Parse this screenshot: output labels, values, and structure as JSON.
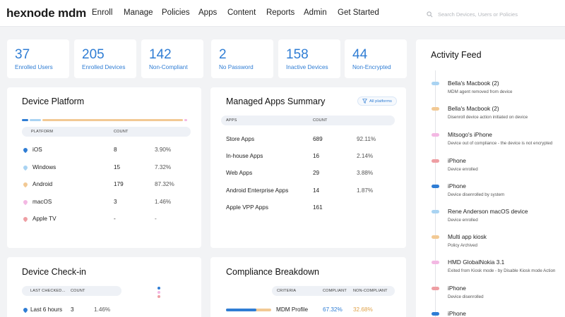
{
  "brand": "hexnode mdm",
  "nav": [
    "Enroll",
    "Manage",
    "Policies",
    "Apps",
    "Content",
    "Reports",
    "Admin",
    "Get Started"
  ],
  "search": {
    "placeholder": "Search Devices, Users or Policies"
  },
  "stats": [
    {
      "value": "37",
      "label": "Enrolled Users"
    },
    {
      "value": "205",
      "label": "Enrolled Devices"
    },
    {
      "value": "142",
      "label": "Non-Compliant"
    },
    {
      "value": "2",
      "label": "No Password"
    },
    {
      "value": "158",
      "label": "Inactive Devices"
    },
    {
      "value": "44",
      "label": "Non-Encrypted"
    }
  ],
  "colors": {
    "accent": "#2f7dd4",
    "ios": "#2f7dd4",
    "windows": "#a9d3f2",
    "android": "#f2c994",
    "macos": "#f3b8e3",
    "appletv": "#ee9ea3"
  },
  "device_platform": {
    "title": "Device Platform",
    "headers": {
      "platform": "PLATFORM",
      "count": "COUNT"
    },
    "rows": [
      {
        "name": "iOS",
        "count": "8",
        "pct": "3.90%",
        "share": 0.039,
        "color": "#2f7dd4"
      },
      {
        "name": "Windows",
        "count": "15",
        "pct": "7.32%",
        "share": 0.0732,
        "color": "#a9d3f2"
      },
      {
        "name": "Android",
        "count": "179",
        "pct": "87.32%",
        "share": 0.8732,
        "color": "#f2c994"
      },
      {
        "name": "macOS",
        "count": "3",
        "pct": "1.46%",
        "share": 0.0146,
        "color": "#f3b8e3"
      },
      {
        "name": "Apple TV",
        "count": "-",
        "pct": "-",
        "share": 0,
        "color": "#ee9ea3"
      }
    ]
  },
  "managed_apps": {
    "title": "Managed Apps Summary",
    "filter_label": "All platforms",
    "headers": {
      "apps": "APPS",
      "count": "COUNT"
    },
    "rows": [
      {
        "name": "Store Apps",
        "count": "689",
        "pct": "92.11%"
      },
      {
        "name": "In-house Apps",
        "count": "16",
        "pct": "2.14%"
      },
      {
        "name": "Web Apps",
        "count": "29",
        "pct": "3.88%"
      },
      {
        "name": "Android Enterprise Apps",
        "count": "14",
        "pct": "1.87%"
      },
      {
        "name": "Apple VPP Apps",
        "count": "161",
        "pct": ""
      }
    ]
  },
  "checkin": {
    "title": "Device Check-in",
    "headers": {
      "last": "LAST CHECKED...",
      "count": "COUNT"
    },
    "rows": [
      {
        "name": "Last 6 hours",
        "count": "3",
        "pct": "1.46%"
      }
    ]
  },
  "compliance": {
    "title": "Compliance Breakdown",
    "headers": {
      "criteria": "CRITERIA",
      "compliant": "COMPLIANT",
      "noncompliant": "NON-COMPLIANT"
    },
    "rows": [
      {
        "name": "MDM Profile",
        "compliant": "67.32%",
        "noncompliant": "32.68%",
        "compliant_share": 0.6732
      }
    ]
  },
  "activity": {
    "title": "Activity Feed",
    "items": [
      {
        "title": "Bella's Macbook (2)",
        "sub": "MDM agent removed from device",
        "color": "#a9d3f2"
      },
      {
        "title": "Bella's Macbook (2)",
        "sub": "Disenroll device action initiated on device",
        "color": "#f2c994"
      },
      {
        "title": "Mitsogo's iPhone",
        "sub": "Device out of compliance - the device is not encrypted",
        "color": "#f3b8e3"
      },
      {
        "title": "iPhone",
        "sub": "Device enrolled",
        "color": "#ee9ea3"
      },
      {
        "title": "iPhone",
        "sub": "Device disenrolled by system",
        "color": "#2f7dd4"
      },
      {
        "title": "Rene Anderson macOS device",
        "sub": "Device enrolled",
        "color": "#a9d3f2"
      },
      {
        "title": "Multi app kiosk",
        "sub": "Policy Archived",
        "color": "#f2c994"
      },
      {
        "title": "HMD GlobalNokia 3.1",
        "sub": "Exited from Kiosk mode - by Disable Kiosk mode Action",
        "color": "#f3b8e3"
      },
      {
        "title": "iPhone",
        "sub": "Device disenrolled",
        "color": "#ee9ea3"
      },
      {
        "title": "iPhone",
        "sub": "",
        "color": "#2f7dd4"
      }
    ]
  }
}
